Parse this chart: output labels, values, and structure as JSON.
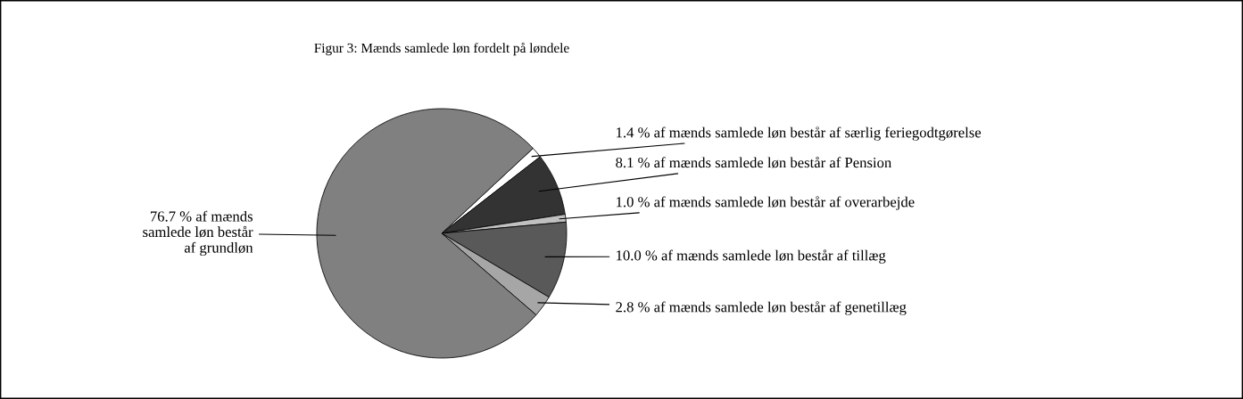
{
  "chart_data": {
    "type": "pie",
    "title": "Figur 3: Mænds samlede løn fordelt på løndele",
    "categories": [
      "1.4 % af mænds samlede løn består af særlig feriegodtgørelse",
      "8.1 % af mænds samlede løn består af Pension",
      "1.0 % af mænds samlede løn består af overarbejde",
      "10.0 % af mænds samlede løn består af tillæg",
      "2.8 % af mænds samlede løn består af genetillæg",
      "76.7 % af mænds\nsamlede løn består\naf grundløn"
    ],
    "values": [
      1.4,
      8.1,
      1.0,
      10.0,
      2.8,
      76.7
    ],
    "colors": [
      "#ffffff",
      "#333333",
      "#c0c0c0",
      "#595959",
      "#a6a6a6",
      "#808080"
    ],
    "legend": false
  }
}
